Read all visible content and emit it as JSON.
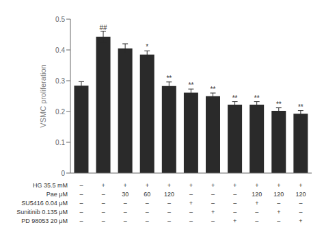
{
  "chart_data": {
    "type": "bar",
    "categories": [
      null,
      null,
      null,
      null,
      null,
      null,
      null,
      null,
      null,
      null,
      null
    ],
    "values": [
      0.284,
      0.443,
      0.405,
      0.385,
      0.283,
      0.261,
      0.25,
      0.222,
      0.222,
      0.202,
      0.193
    ],
    "errors": [
      0.013,
      0.018,
      0.015,
      0.012,
      0.013,
      0.012,
      0.01,
      0.01,
      0.01,
      0.01,
      0.01
    ],
    "color": "#2a2a2a",
    "ylim": [
      0,
      0.5
    ],
    "yticks": [
      0,
      0.1,
      0.2,
      0.3,
      0.4,
      0.5
    ],
    "ylabel": "VSMC proliferation",
    "annotations": [
      null,
      "##",
      null,
      "*",
      "**",
      "**",
      "**",
      "**",
      "**",
      "**",
      "**"
    ],
    "table_rows": [
      {
        "label": "HG 35.5 mM",
        "values": [
          "–",
          "+",
          "+",
          "+",
          "+",
          "+",
          "+",
          "+",
          "+",
          "+",
          "+"
        ]
      },
      {
        "label": "Pae μM",
        "values": [
          "–",
          "–",
          "30",
          "60",
          "120",
          "–",
          "–",
          "–",
          "120",
          "120",
          "120"
        ]
      },
      {
        "label": "SU5416 0.04 μM",
        "values": [
          "–",
          "–",
          "–",
          "–",
          "–",
          "+",
          "–",
          "–",
          "+",
          "–",
          "–"
        ]
      },
      {
        "label": "Sunitinib 0.135 μM",
        "values": [
          "–",
          "–",
          "–",
          "–",
          "–",
          "–",
          "+",
          "–",
          "–",
          "+",
          "–"
        ]
      },
      {
        "label": "PD 98053 20 μM",
        "values": [
          "–",
          "–",
          "–",
          "–",
          "–",
          "–",
          "–",
          "+",
          "–",
          "–",
          "+"
        ]
      }
    ],
    "grid": false,
    "tick_labels": "y"
  }
}
